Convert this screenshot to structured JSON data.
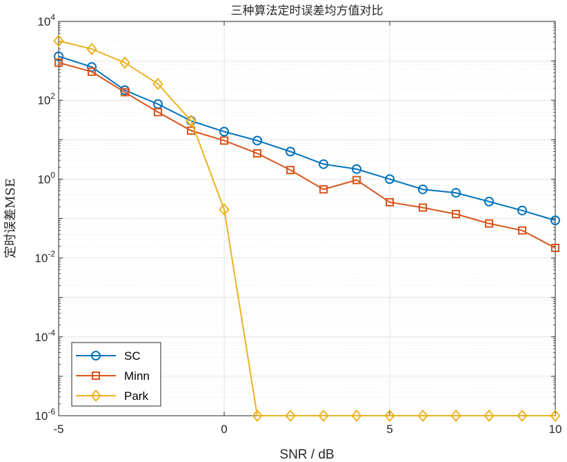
{
  "chart_data": {
    "type": "line",
    "title": "三种算法定时误差均方值对比",
    "xlabel": "SNR / dB",
    "ylabel": "定时误差MSE",
    "yscale": "log",
    "xlim": [
      -5,
      10
    ],
    "ylim": [
      1e-06,
      10000.0
    ],
    "grid": true,
    "x": [
      -5,
      -4,
      -3,
      -2,
      -1,
      0,
      1,
      2,
      3,
      4,
      5,
      6,
      7,
      8,
      9,
      10
    ],
    "xticks": [
      "-5",
      "0",
      "5",
      "10"
    ],
    "yticks": [
      {
        "base": "10",
        "exp": "-6"
      },
      {
        "base": "10",
        "exp": "-4"
      },
      {
        "base": "10",
        "exp": "-2"
      },
      {
        "base": "10",
        "exp": "0"
      },
      {
        "base": "10",
        "exp": "2"
      },
      {
        "base": "10",
        "exp": "4"
      }
    ],
    "legend_location": "bottom-left",
    "series": [
      {
        "name": "SC",
        "marker": "circle",
        "color": "#0072BD",
        "values": [
          1300,
          700,
          180,
          80,
          30,
          16,
          9.5,
          5,
          2.4,
          1.8,
          1.0,
          0.55,
          0.45,
          0.27,
          0.16,
          0.09
        ]
      },
      {
        "name": "Minn",
        "marker": "square",
        "color": "#D95319",
        "values": [
          900,
          530,
          160,
          50,
          17,
          9.5,
          4.5,
          1.7,
          0.55,
          0.95,
          0.26,
          0.19,
          0.13,
          0.075,
          0.05,
          0.018
        ]
      },
      {
        "name": "Park",
        "marker": "diamond",
        "color": "#EDB120",
        "values": [
          3200,
          2000,
          900,
          260,
          30,
          0.17,
          1e-06,
          1e-06,
          1e-06,
          1e-06,
          1e-06,
          1e-06,
          1e-06,
          1e-06,
          1e-06,
          1e-06
        ]
      }
    ]
  }
}
